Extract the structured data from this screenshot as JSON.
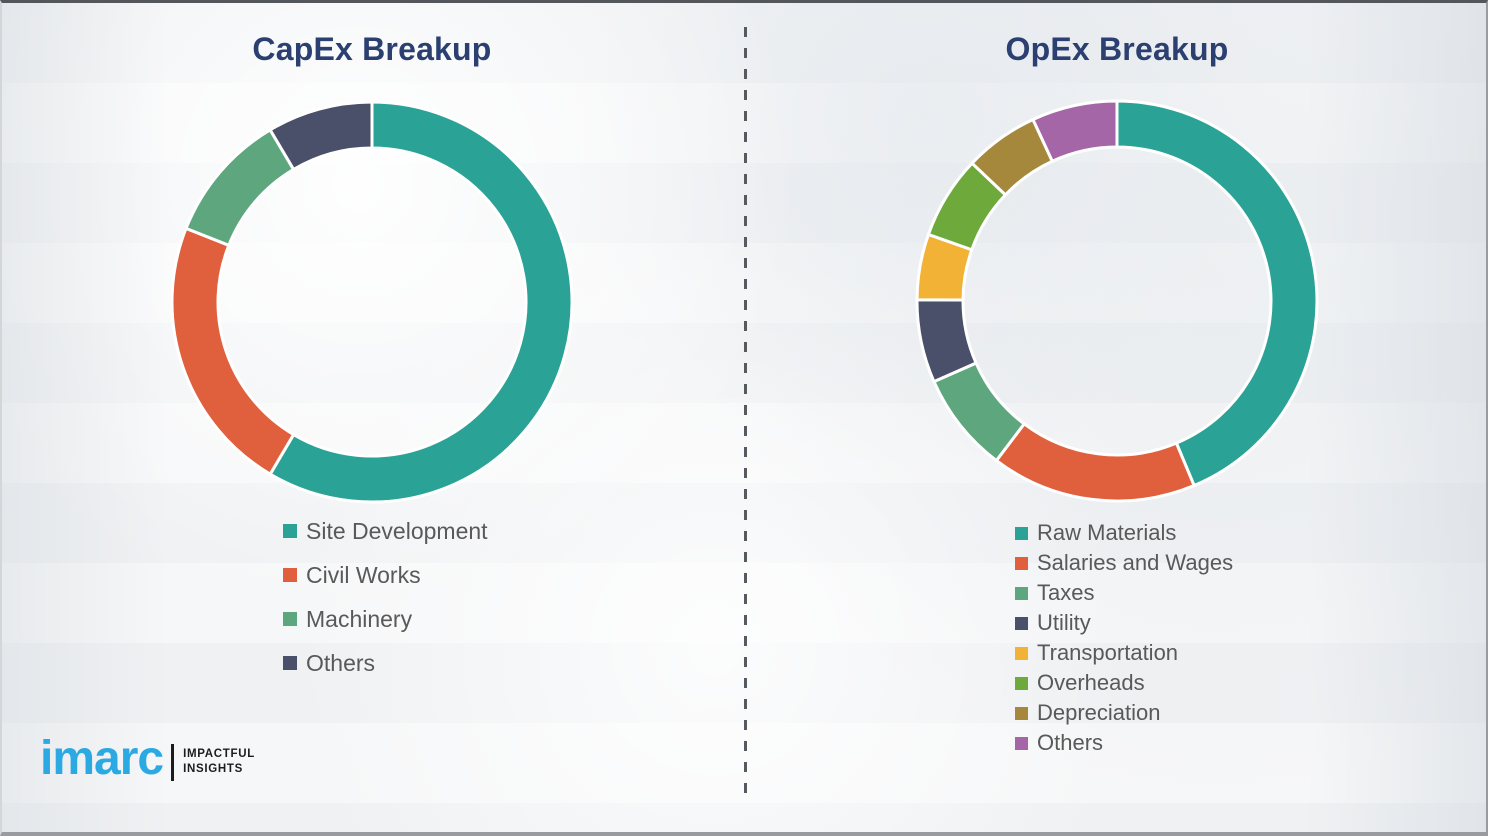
{
  "page": {
    "background_color": "#f3f4f6",
    "divider_style": "vertical-dashed",
    "divider_color": "#555a60",
    "title_color": "#2b4070",
    "legend_text_color": "#595959"
  },
  "chart_data": [
    {
      "type": "pie",
      "variant": "donut",
      "title": "CapEx Breakup",
      "direction": "clockwise",
      "start_angle_deg": 0,
      "legend_position": "bottom-left",
      "labels": [
        "Site Development",
        "Civil Works",
        "Machinery",
        "Others"
      ],
      "values": [
        58.5,
        22.5,
        10.5,
        8.5
      ],
      "colors": [
        "#2aa396",
        "#e05f3c",
        "#5ea77e",
        "#4a4f6a"
      ]
    },
    {
      "type": "pie",
      "variant": "donut",
      "title": "OpEx Breakup",
      "direction": "clockwise",
      "start_angle_deg": 0,
      "legend_position": "bottom-left",
      "labels": [
        "Raw Materials",
        "Salaries and Wages",
        "Taxes",
        "Utility",
        "Transportation",
        "Overheads",
        "Depreciation",
        "Others"
      ],
      "values": [
        43.7,
        16.6,
        8.1,
        6.7,
        5.3,
        6.7,
        6.0,
        6.9
      ],
      "colors": [
        "#2aa396",
        "#e05f3c",
        "#5ea77e",
        "#4a4f6a",
        "#f2b235",
        "#6ea93c",
        "#a5883c",
        "#a466a6"
      ]
    }
  ],
  "logo": {
    "brand": "imarc",
    "tagline_line1": "IMPACTFUL",
    "tagline_line2": "INSIGHTS",
    "brand_color": "#2aa9e2"
  }
}
